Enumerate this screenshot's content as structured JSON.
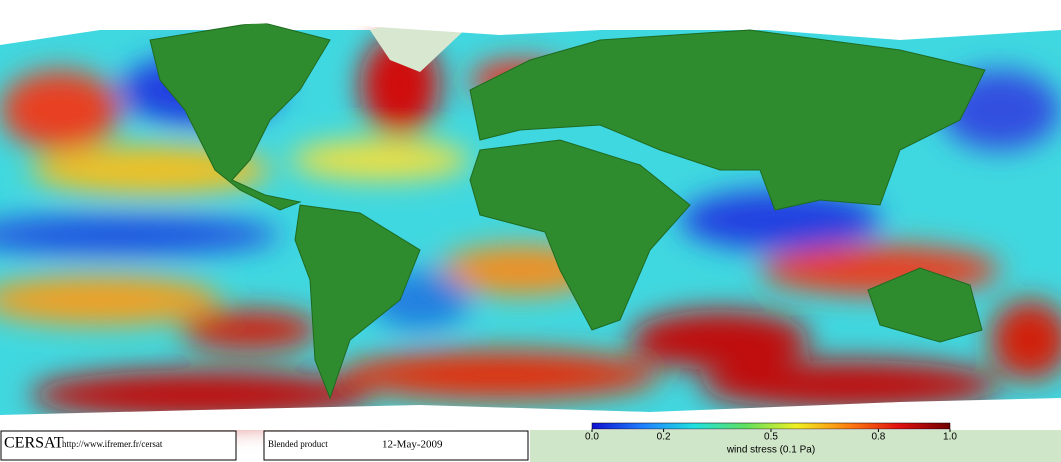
{
  "footer": {
    "logo": "CERSAT",
    "url": "http://www.ifremer.fr/cersat",
    "product": "Blended product",
    "date": "12-May-2009"
  },
  "colorbar": {
    "label": "wind stress (0.1 Pa)",
    "lim": [
      0,
      1
    ],
    "ticks": [
      {
        "value": 0,
        "label": "0.0"
      },
      0.2,
      0.5,
      0.8,
      {
        "value": 1,
        "label": "1.0"
      }
    ],
    "colors": [
      "#1010d0",
      "#2080ff",
      "#20e0e0",
      "#60e060",
      "#f0f020",
      "#ff8010",
      "#e01010",
      "#700000"
    ]
  }
}
